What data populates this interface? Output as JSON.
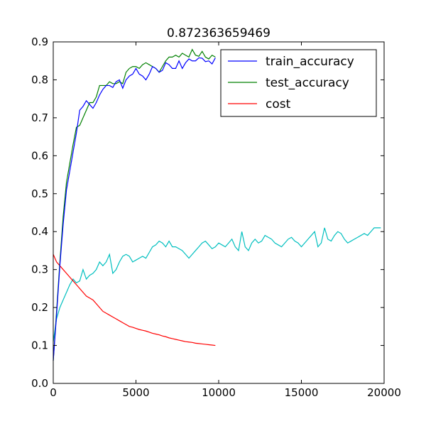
{
  "chart_data": {
    "type": "line",
    "title": "0.872363659469",
    "xlabel": "",
    "ylabel": "",
    "xlim": [
      0,
      20000
    ],
    "ylim": [
      0.0,
      0.9
    ],
    "grid": false,
    "legend_placement": "top-right",
    "xticks": [
      0,
      5000,
      10000,
      15000,
      20000
    ],
    "xtick_labels": [
      "0",
      "5000",
      "10000",
      "15000",
      "20000"
    ],
    "yticks": [
      0.0,
      0.1,
      0.2,
      0.3,
      0.4,
      0.5,
      0.6,
      0.7,
      0.8,
      0.9
    ],
    "ytick_labels": [
      "0.0",
      "0.1",
      "0.2",
      "0.3",
      "0.4",
      "0.5",
      "0.6",
      "0.7",
      "0.8",
      "0.9"
    ],
    "series": [
      {
        "name": "train_accuracy",
        "color": "#0000ff",
        "in_legend": true,
        "x": [
          0,
          200,
          400,
          600,
          800,
          1000,
          1200,
          1400,
          1600,
          1800,
          2000,
          2200,
          2400,
          2600,
          2800,
          3000,
          3200,
          3400,
          3600,
          3800,
          4000,
          4200,
          4400,
          4600,
          4800,
          5000,
          5200,
          5400,
          5600,
          5800,
          6000,
          6200,
          6400,
          6600,
          6800,
          7000,
          7200,
          7400,
          7600,
          7800,
          8000,
          8200,
          8400,
          8600,
          8800,
          9000,
          9200,
          9400,
          9600,
          9800
        ],
        "y": [
          0.06,
          0.18,
          0.31,
          0.42,
          0.51,
          0.56,
          0.61,
          0.66,
          0.72,
          0.73,
          0.745,
          0.735,
          0.725,
          0.74,
          0.76,
          0.775,
          0.785,
          0.785,
          0.78,
          0.795,
          0.8,
          0.778,
          0.8,
          0.81,
          0.815,
          0.83,
          0.815,
          0.81,
          0.8,
          0.815,
          0.835,
          0.83,
          0.82,
          0.825,
          0.845,
          0.84,
          0.83,
          0.83,
          0.85,
          0.83,
          0.845,
          0.855,
          0.85,
          0.85,
          0.858,
          0.857,
          0.848,
          0.85,
          0.842,
          0.858
        ]
      },
      {
        "name": "test_accuracy",
        "color": "#008000",
        "in_legend": true,
        "x": [
          0,
          200,
          400,
          600,
          800,
          1000,
          1200,
          1400,
          1600,
          1800,
          2000,
          2200,
          2400,
          2600,
          2800,
          3000,
          3200,
          3400,
          3600,
          3800,
          4000,
          4200,
          4400,
          4600,
          4800,
          5000,
          5200,
          5400,
          5600,
          5800,
          6000,
          6200,
          6400,
          6600,
          6800,
          7000,
          7200,
          7400,
          7600,
          7800,
          8000,
          8200,
          8400,
          8600,
          8800,
          9000,
          9200,
          9400,
          9600,
          9800
        ],
        "y": [
          0.06,
          0.19,
          0.32,
          0.44,
          0.53,
          0.58,
          0.63,
          0.675,
          0.68,
          0.7,
          0.72,
          0.74,
          0.74,
          0.755,
          0.785,
          0.785,
          0.785,
          0.795,
          0.79,
          0.79,
          0.795,
          0.79,
          0.82,
          0.83,
          0.835,
          0.835,
          0.83,
          0.84,
          0.845,
          0.84,
          0.835,
          0.83,
          0.82,
          0.835,
          0.85,
          0.86,
          0.86,
          0.865,
          0.86,
          0.87,
          0.865,
          0.86,
          0.88,
          0.865,
          0.862,
          0.875,
          0.86,
          0.855,
          0.865,
          0.86
        ]
      },
      {
        "name": "cost",
        "color": "#ff0000",
        "in_legend": true,
        "x": [
          0,
          200,
          400,
          600,
          800,
          1000,
          1200,
          1400,
          1600,
          1800,
          2000,
          2200,
          2400,
          2600,
          2800,
          3000,
          3200,
          3400,
          3600,
          3800,
          4000,
          4200,
          4400,
          4600,
          4800,
          5000,
          5200,
          5400,
          5600,
          5800,
          6000,
          6200,
          6400,
          6600,
          6800,
          7000,
          7200,
          7400,
          7600,
          7800,
          8000,
          8200,
          8400,
          8600,
          8800,
          9000,
          9200,
          9400,
          9600,
          9800
        ],
        "y": [
          0.34,
          0.32,
          0.31,
          0.3,
          0.29,
          0.28,
          0.27,
          0.26,
          0.25,
          0.24,
          0.23,
          0.225,
          0.22,
          0.21,
          0.2,
          0.19,
          0.185,
          0.18,
          0.175,
          0.17,
          0.165,
          0.16,
          0.155,
          0.15,
          0.148,
          0.145,
          0.142,
          0.14,
          0.138,
          0.135,
          0.132,
          0.13,
          0.128,
          0.125,
          0.123,
          0.12,
          0.118,
          0.116,
          0.114,
          0.112,
          0.11,
          0.109,
          0.108,
          0.106,
          0.105,
          0.104,
          0.103,
          0.102,
          0.101,
          0.1
        ]
      },
      {
        "name": "",
        "color": "#00bfbf",
        "in_legend": false,
        "x": [
          0,
          200,
          400,
          600,
          800,
          1000,
          1200,
          1400,
          1600,
          1800,
          2000,
          2200,
          2400,
          2600,
          2800,
          3000,
          3200,
          3400,
          3600,
          3800,
          4000,
          4200,
          4400,
          4600,
          4800,
          5000,
          5200,
          5400,
          5600,
          5800,
          6000,
          6200,
          6400,
          6600,
          6800,
          7000,
          7200,
          7400,
          7600,
          7800,
          8000,
          8200,
          8400,
          8600,
          8800,
          9000,
          9200,
          9400,
          9600,
          9800,
          10000,
          10200,
          10400,
          10600,
          10800,
          11000,
          11200,
          11400,
          11600,
          11800,
          12000,
          12200,
          12400,
          12600,
          12800,
          13000,
          13200,
          13400,
          13600,
          13800,
          14000,
          14200,
          14400,
          14600,
          14800,
          15000,
          15200,
          15400,
          15600,
          15800,
          16000,
          16200,
          16400,
          16600,
          16800,
          17000,
          17200,
          17400,
          17600,
          17800,
          18000,
          18200,
          18400,
          18600,
          18800,
          19000,
          19200,
          19400,
          19600,
          19800
        ],
        "y": [
          0.11,
          0.17,
          0.2,
          0.22,
          0.24,
          0.26,
          0.275,
          0.265,
          0.27,
          0.3,
          0.275,
          0.285,
          0.29,
          0.3,
          0.32,
          0.31,
          0.32,
          0.34,
          0.29,
          0.3,
          0.32,
          0.335,
          0.34,
          0.335,
          0.32,
          0.325,
          0.33,
          0.335,
          0.33,
          0.345,
          0.36,
          0.365,
          0.375,
          0.37,
          0.36,
          0.375,
          0.36,
          0.36,
          0.355,
          0.35,
          0.34,
          0.33,
          0.34,
          0.35,
          0.36,
          0.37,
          0.375,
          0.365,
          0.355,
          0.36,
          0.37,
          0.365,
          0.36,
          0.37,
          0.38,
          0.36,
          0.35,
          0.4,
          0.36,
          0.35,
          0.37,
          0.38,
          0.37,
          0.375,
          0.39,
          0.385,
          0.38,
          0.37,
          0.365,
          0.36,
          0.37,
          0.38,
          0.385,
          0.375,
          0.37,
          0.36,
          0.37,
          0.38,
          0.39,
          0.4,
          0.36,
          0.37,
          0.41,
          0.38,
          0.375,
          0.39,
          0.4,
          0.395,
          0.38,
          0.37,
          0.375,
          0.38,
          0.385,
          0.39,
          0.395,
          0.39,
          0.4,
          0.41,
          0.41,
          0.41
        ]
      }
    ]
  }
}
